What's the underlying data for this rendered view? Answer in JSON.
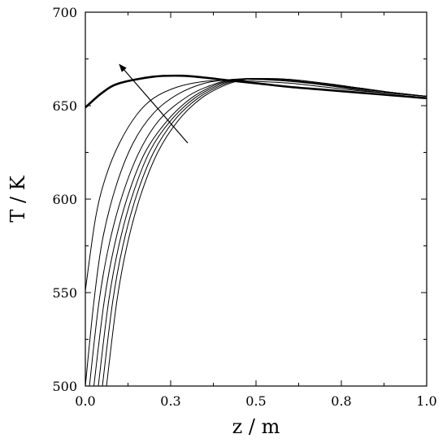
{
  "chart_data": {
    "type": "line",
    "title": "",
    "xlabel": "z / m",
    "ylabel": "T / K",
    "xlim": [
      0.0,
      1.0
    ],
    "ylim": [
      500,
      700
    ],
    "xticks": [
      0.0,
      0.25,
      0.5,
      0.75,
      1.0
    ],
    "xtick_labels": [
      "0.0",
      "0.3",
      "0.5",
      "0.8",
      "1.0"
    ],
    "yticks": [
      500,
      550,
      600,
      650,
      700
    ],
    "ytick_labels": [
      "500",
      "550",
      "600",
      "650",
      "700"
    ],
    "grid": false,
    "legend": "none",
    "annotation": {
      "type": "arrow",
      "from": [
        0.3,
        630
      ],
      "to": [
        0.1,
        672
      ]
    },
    "series": [
      {
        "line_width": "thick",
        "points": [
          [
            0.0,
            649
          ],
          [
            0.05,
            657
          ],
          [
            0.1,
            662
          ],
          [
            0.2,
            665.5
          ],
          [
            0.28,
            666
          ],
          [
            0.35,
            665
          ],
          [
            0.42,
            663.5
          ],
          [
            0.5,
            662
          ],
          [
            0.6,
            660
          ],
          [
            0.7,
            658.5
          ],
          [
            0.8,
            657
          ],
          [
            0.9,
            655.5
          ],
          [
            1.0,
            654
          ]
        ]
      },
      {
        "line_width": "thin",
        "points": [
          [
            0.0,
            551
          ],
          [
            0.03,
            590
          ],
          [
            0.06,
            612
          ],
          [
            0.1,
            630
          ],
          [
            0.15,
            645
          ],
          [
            0.2,
            654
          ],
          [
            0.27,
            660
          ],
          [
            0.35,
            663
          ],
          [
            0.43,
            663.5
          ],
          [
            0.5,
            663
          ],
          [
            0.6,
            662
          ],
          [
            0.7,
            660
          ],
          [
            0.8,
            658
          ],
          [
            0.9,
            656.5
          ],
          [
            1.0,
            655
          ]
        ]
      },
      {
        "line_width": "thin",
        "points": [
          [
            0.0,
            500
          ],
          [
            0.025,
            545
          ],
          [
            0.05,
            578
          ],
          [
            0.09,
            607
          ],
          [
            0.14,
            630
          ],
          [
            0.2,
            646
          ],
          [
            0.27,
            656
          ],
          [
            0.35,
            662
          ],
          [
            0.43,
            664
          ],
          [
            0.5,
            664
          ],
          [
            0.6,
            663
          ],
          [
            0.7,
            661
          ],
          [
            0.8,
            658.5
          ],
          [
            0.9,
            656.5
          ],
          [
            1.0,
            655
          ]
        ]
      },
      {
        "line_width": "thin",
        "points": [
          [
            0.012,
            500
          ],
          [
            0.04,
            545
          ],
          [
            0.07,
            576
          ],
          [
            0.11,
            603
          ],
          [
            0.16,
            626
          ],
          [
            0.22,
            643
          ],
          [
            0.3,
            655
          ],
          [
            0.37,
            661
          ],
          [
            0.43,
            664
          ],
          [
            0.5,
            664
          ],
          [
            0.6,
            663.5
          ],
          [
            0.7,
            661
          ],
          [
            0.8,
            659
          ],
          [
            0.9,
            657
          ],
          [
            1.0,
            655
          ]
        ]
      },
      {
        "line_width": "thin",
        "points": [
          [
            0.025,
            500
          ],
          [
            0.055,
            545
          ],
          [
            0.085,
            575
          ],
          [
            0.125,
            602
          ],
          [
            0.175,
            625
          ],
          [
            0.24,
            642
          ],
          [
            0.31,
            654
          ],
          [
            0.38,
            661
          ],
          [
            0.44,
            664
          ],
          [
            0.5,
            664.5
          ],
          [
            0.6,
            663.5
          ],
          [
            0.7,
            661.5
          ],
          [
            0.8,
            659
          ],
          [
            0.9,
            657
          ],
          [
            1.0,
            655
          ]
        ]
      },
      {
        "line_width": "thin",
        "points": [
          [
            0.038,
            500
          ],
          [
            0.068,
            545
          ],
          [
            0.098,
            575
          ],
          [
            0.138,
            602
          ],
          [
            0.19,
            626
          ],
          [
            0.25,
            642
          ],
          [
            0.32,
            654
          ],
          [
            0.39,
            661
          ],
          [
            0.45,
            664
          ],
          [
            0.5,
            664.5
          ],
          [
            0.6,
            663.5
          ],
          [
            0.7,
            661.5
          ],
          [
            0.8,
            659.5
          ],
          [
            0.9,
            657
          ],
          [
            1.0,
            655
          ]
        ]
      },
      {
        "line_width": "thin",
        "points": [
          [
            0.05,
            500
          ],
          [
            0.08,
            545
          ],
          [
            0.11,
            575
          ],
          [
            0.15,
            602
          ],
          [
            0.2,
            625
          ],
          [
            0.26,
            642
          ],
          [
            0.33,
            654
          ],
          [
            0.4,
            661
          ],
          [
            0.46,
            664
          ],
          [
            0.52,
            664.5
          ],
          [
            0.6,
            664
          ],
          [
            0.7,
            662
          ],
          [
            0.8,
            659.5
          ],
          [
            0.9,
            657
          ],
          [
            1.0,
            655
          ]
        ]
      },
      {
        "line_width": "thin",
        "points": [
          [
            0.062,
            500
          ],
          [
            0.092,
            545
          ],
          [
            0.122,
            575
          ],
          [
            0.162,
            602
          ],
          [
            0.212,
            625
          ],
          [
            0.272,
            642
          ],
          [
            0.34,
            654
          ],
          [
            0.41,
            661
          ],
          [
            0.47,
            664
          ],
          [
            0.53,
            664.5
          ],
          [
            0.6,
            664
          ],
          [
            0.7,
            662
          ],
          [
            0.8,
            659.5
          ],
          [
            0.9,
            657
          ],
          [
            1.0,
            655
          ]
        ]
      }
    ]
  }
}
